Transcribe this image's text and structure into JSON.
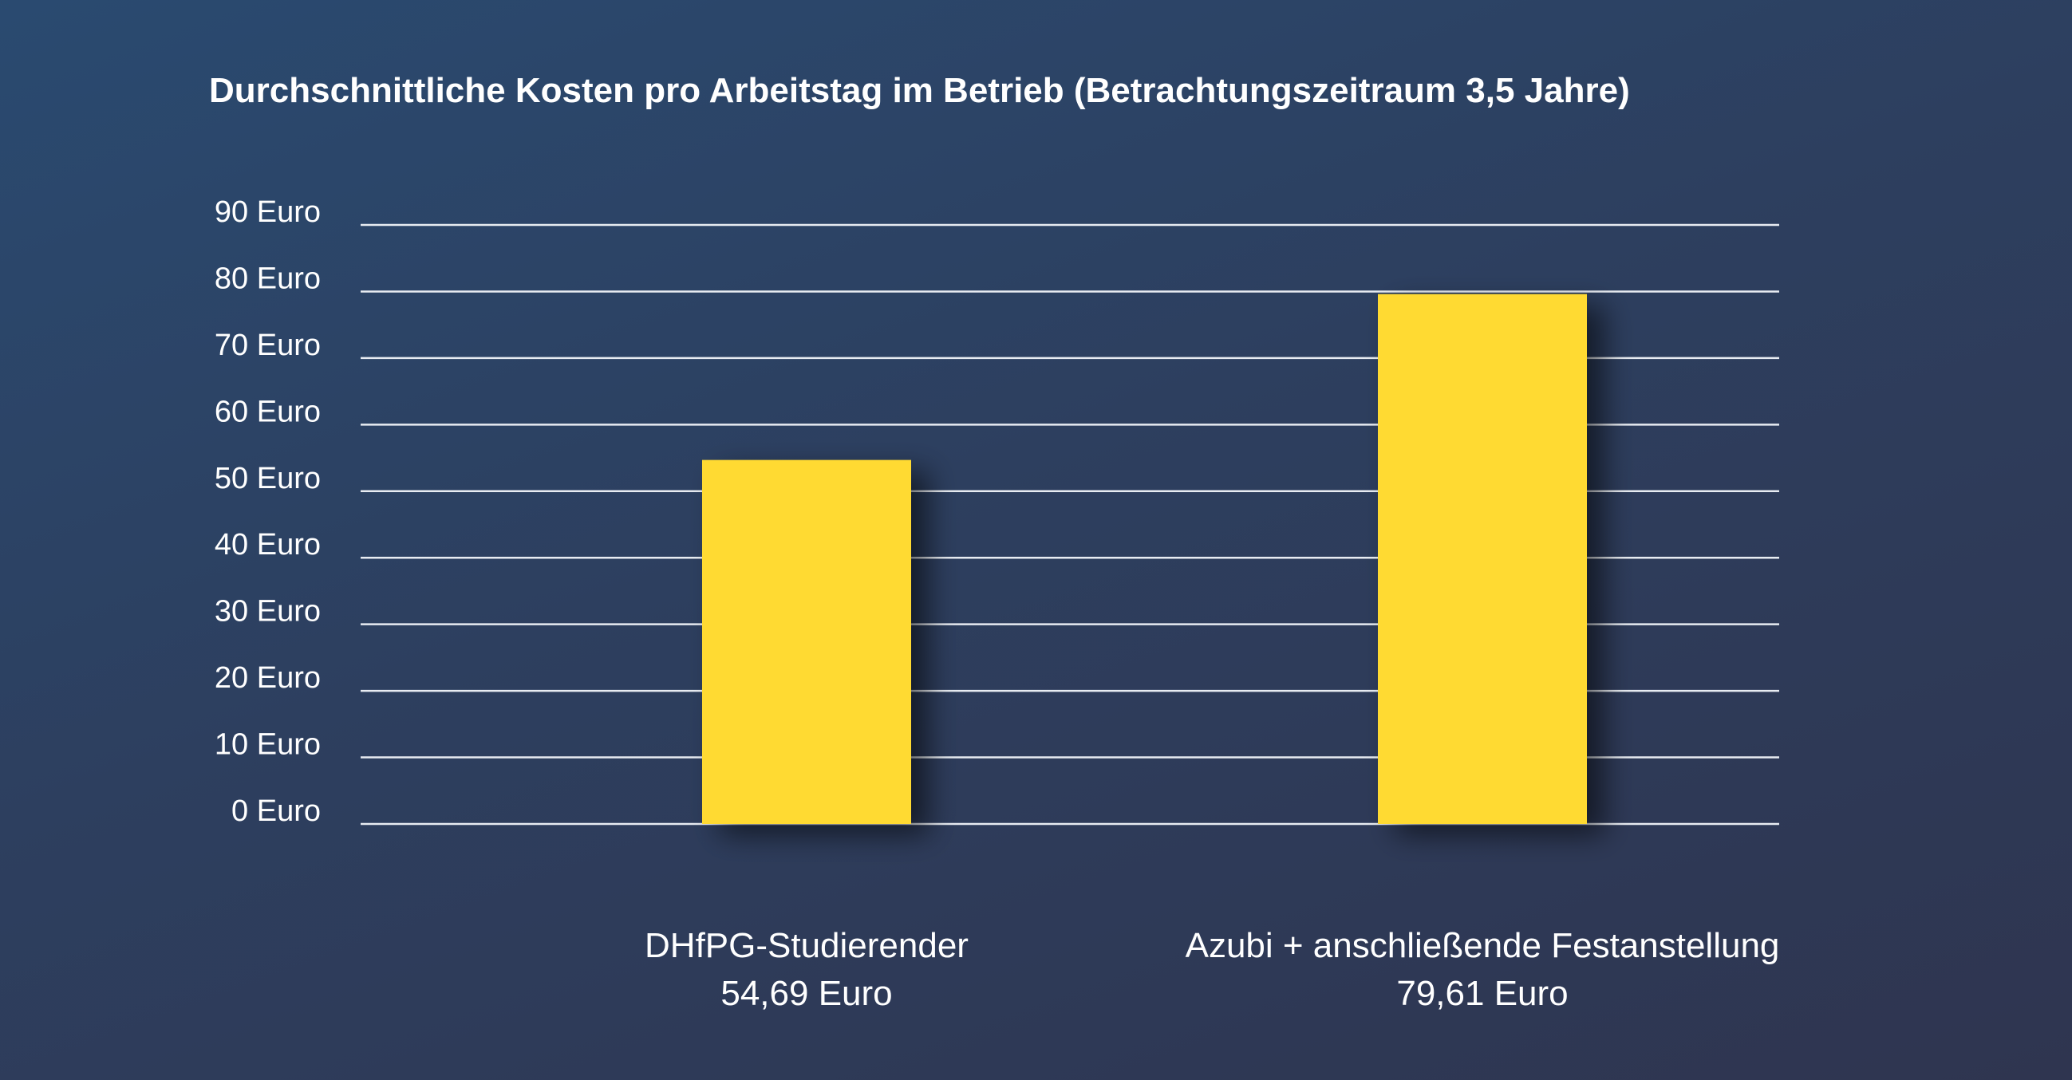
{
  "chart_data": {
    "type": "bar",
    "title": "Durchschnittliche Kosten pro Arbeitstag im Betrieb (Betrachtungszeitraum 3,5 Jahre)",
    "categories": [
      "DHfPG-Studierender",
      "Azubi + anschließende Festanstellung"
    ],
    "value_labels": [
      "54,69 Euro",
      "79,61 Euro"
    ],
    "values": [
      54.69,
      79.61
    ],
    "ylim": [
      0,
      90
    ],
    "y_ticks": [
      0,
      10,
      20,
      30,
      40,
      50,
      60,
      70,
      80,
      90
    ],
    "y_tick_labels": [
      "0 Euro",
      "10 Euro",
      "20 Euro",
      "30 Euro",
      "40 Euro",
      "50 Euro",
      "60 Euro",
      "70 Euro",
      "80 Euro",
      "90 Euro"
    ],
    "grid": true,
    "xlabel": "",
    "ylabel": "",
    "colors": {
      "bar": "#ffda33",
      "grid": "#e8ecf2",
      "text": "#ffffff"
    }
  }
}
